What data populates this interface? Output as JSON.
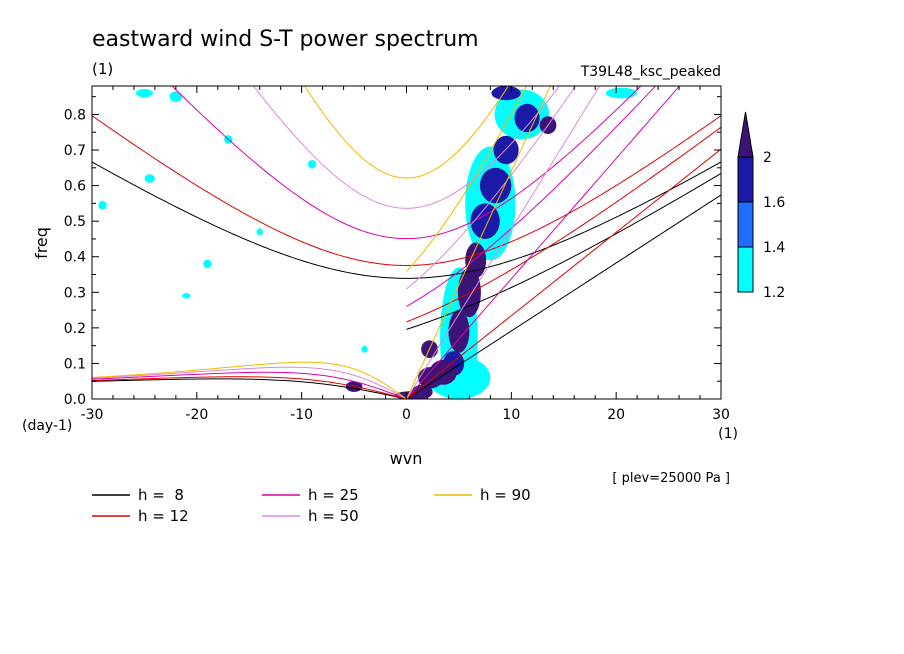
{
  "chart_data": {
    "type": "line",
    "title": "eastward wind S-T power spectrum",
    "unit_label": "(1)",
    "experiment": "T39L48_ksc_peaked",
    "xlabel": "wvn",
    "ylabel": "freq",
    "x_unit": "(1)",
    "y_unit": "(day-1)",
    "xlim": [
      -30,
      30
    ],
    "ylim": [
      0,
      0.88
    ],
    "x_ticks": [
      -30,
      -20,
      -10,
      0,
      10,
      20,
      30
    ],
    "x_tick_labels": [
      "-30",
      "-20",
      "-10",
      "0",
      "10",
      "20",
      "30"
    ],
    "y_ticks": [
      0,
      0.1,
      0.2,
      0.3,
      0.4,
      0.5,
      0.6,
      0.7,
      0.8
    ],
    "y_tick_labels": [
      "0.0",
      "0.1",
      "0.2",
      "0.3",
      "0.4",
      "0.5",
      "0.6",
      "0.7",
      "0.8"
    ],
    "annotation": "[ plev=25000 Pa ]",
    "colorbar": {
      "levels": [
        1.2,
        1.4,
        1.6,
        2
      ],
      "labels": [
        "1.2",
        "1.4",
        "1.6",
        "2"
      ],
      "colors": [
        "#00ffff",
        "#1e6eff",
        "#1a1aa6",
        "#3c1478"
      ]
    },
    "series": [
      {
        "name": "h =  8",
        "h": 8,
        "color": "#000000"
      },
      {
        "name": "h = 12",
        "h": 12,
        "color": "#dd0000"
      },
      {
        "name": "h = 25",
        "h": 25,
        "color": "#dd00aa"
      },
      {
        "name": "h = 50",
        "h": 50,
        "color": "#dd88dd"
      },
      {
        "name": "h = 90",
        "h": 90,
        "color": "#eebb00"
      }
    ],
    "contours": [
      {
        "x": 0.5,
        "y": 0.01,
        "rx": 1.6,
        "ry": 0.012,
        "level": 2
      },
      {
        "x": 1.5,
        "y": 0.02,
        "rx": 1.0,
        "ry": 0.02,
        "level": 2
      },
      {
        "x": 2.3,
        "y": 0.06,
        "rx": 1.2,
        "ry": 0.03,
        "level": 2
      },
      {
        "x": 3.5,
        "y": 0.075,
        "rx": 1.3,
        "ry": 0.035,
        "level": 2
      },
      {
        "x": 2.2,
        "y": 0.14,
        "rx": 0.8,
        "ry": 0.025,
        "level": 2
      },
      {
        "x": 4.5,
        "y": 0.1,
        "rx": 1.0,
        "ry": 0.035,
        "level": 1.6
      },
      {
        "x": 5.0,
        "y": 0.19,
        "rx": 1.0,
        "ry": 0.06,
        "level": 2
      },
      {
        "x": 6.0,
        "y": 0.3,
        "rx": 1.1,
        "ry": 0.07,
        "level": 2
      },
      {
        "x": 6.6,
        "y": 0.39,
        "rx": 1.0,
        "ry": 0.05,
        "level": 2
      },
      {
        "x": 7.5,
        "y": 0.5,
        "rx": 1.4,
        "ry": 0.05,
        "level": 1.6
      },
      {
        "x": 8.5,
        "y": 0.6,
        "rx": 1.5,
        "ry": 0.05,
        "level": 1.6
      },
      {
        "x": 9.5,
        "y": 0.7,
        "rx": 1.2,
        "ry": 0.04,
        "level": 1.6
      },
      {
        "x": 11.5,
        "y": 0.79,
        "rx": 1.2,
        "ry": 0.04,
        "level": 1.6
      },
      {
        "x": 13.5,
        "y": 0.77,
        "rx": 0.8,
        "ry": 0.025,
        "level": 2
      },
      {
        "x": 9.5,
        "y": 0.86,
        "rx": 1.4,
        "ry": 0.02,
        "level": 1.6
      },
      {
        "x": -5,
        "y": 0.035,
        "rx": 0.8,
        "ry": 0.015,
        "level": 2
      },
      {
        "x": 5.0,
        "y": 0.17,
        "rx": 1.8,
        "ry": 0.2,
        "level": 1.2
      },
      {
        "x": 8.0,
        "y": 0.55,
        "rx": 2.4,
        "ry": 0.16,
        "level": 1.2
      },
      {
        "x": 11.0,
        "y": 0.8,
        "rx": 2.6,
        "ry": 0.07,
        "level": 1.2
      },
      {
        "x": 5.0,
        "y": 0.06,
        "rx": 3.0,
        "ry": 0.06,
        "level": 1.2
      },
      {
        "x": -24.5,
        "y": 0.62,
        "rx": 0.5,
        "ry": 0.012,
        "level": 1.2
      },
      {
        "x": -29,
        "y": 0.545,
        "rx": 0.4,
        "ry": 0.012,
        "level": 1.2
      },
      {
        "x": -19,
        "y": 0.38,
        "rx": 0.4,
        "ry": 0.012,
        "level": 1.2
      },
      {
        "x": -21,
        "y": 0.29,
        "rx": 0.4,
        "ry": 0.008,
        "level": 1.2
      },
      {
        "x": -17,
        "y": 0.73,
        "rx": 0.4,
        "ry": 0.012,
        "level": 1.2
      },
      {
        "x": -22,
        "y": 0.85,
        "rx": 0.6,
        "ry": 0.015,
        "level": 1.2
      },
      {
        "x": -9,
        "y": 0.66,
        "rx": 0.4,
        "ry": 0.012,
        "level": 1.2
      },
      {
        "x": -25,
        "y": 0.86,
        "rx": 0.8,
        "ry": 0.012,
        "level": 1.2
      },
      {
        "x": -14,
        "y": 0.47,
        "rx": 0.3,
        "ry": 0.01,
        "level": 1.2
      },
      {
        "x": -4,
        "y": 0.14,
        "rx": 0.3,
        "ry": 0.01,
        "level": 1.2
      },
      {
        "x": 20.5,
        "y": 0.86,
        "rx": 1.5,
        "ry": 0.015,
        "level": 1.2
      }
    ],
    "legend": [
      {
        "name": "h =  8",
        "color": "#000000"
      },
      {
        "name": "h = 12",
        "color": "#dd0000"
      },
      {
        "name": "h = 25",
        "color": "#dd00aa"
      },
      {
        "name": "h = 50",
        "color": "#dd88dd"
      },
      {
        "name": "h = 90",
        "color": "#eebb00"
      }
    ]
  }
}
